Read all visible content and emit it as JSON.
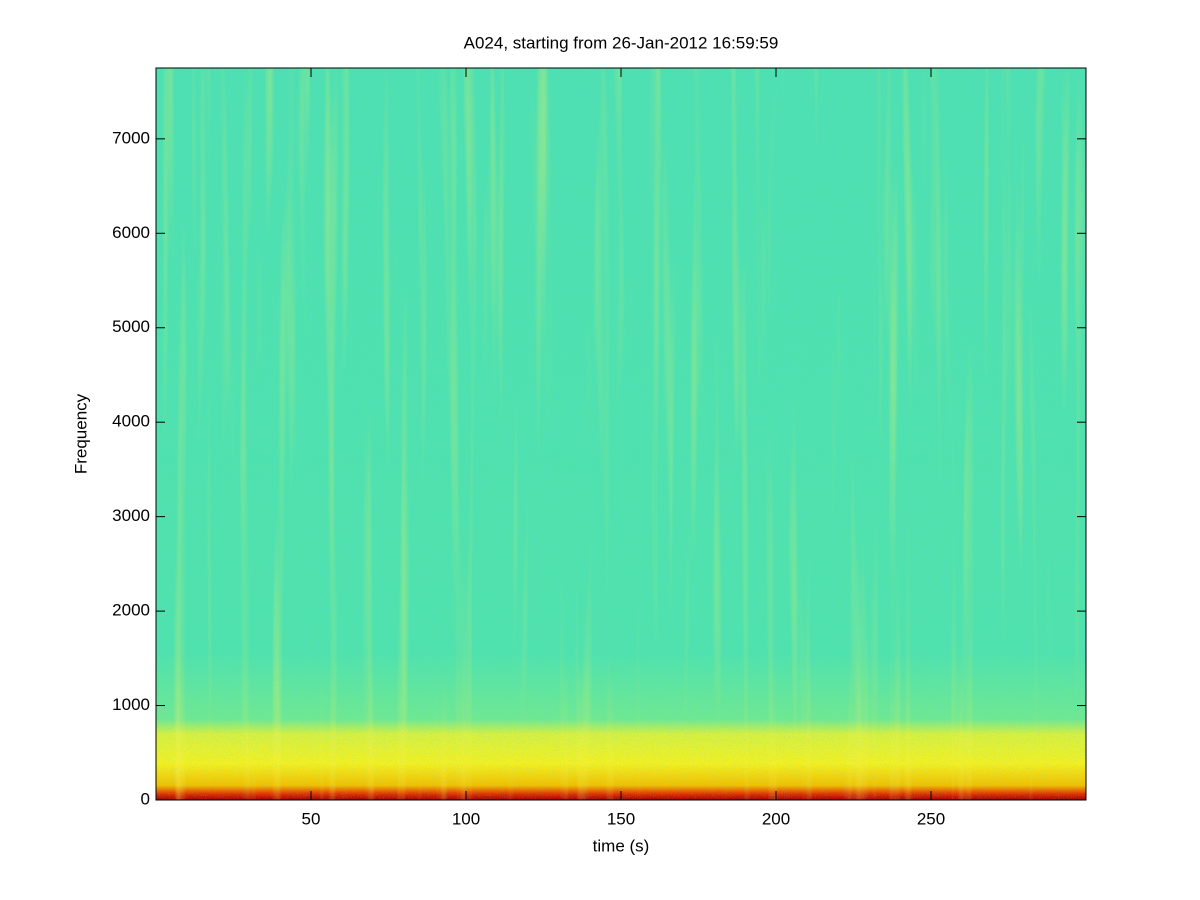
{
  "chart_data": {
    "type": "spectrogram",
    "title": "A024, starting from 26-Jan-2012 16:59:59",
    "x_label": "time (s)",
    "y_label": "Frequency",
    "xlim": [
      0,
      300
    ],
    "xticks": [
      50,
      100,
      150,
      200,
      250
    ],
    "ylim": [
      0,
      7750
    ],
    "yticks": [
      0,
      1000,
      2000,
      3000,
      4000,
      5000,
      6000,
      7000
    ],
    "grid": false
  }
}
